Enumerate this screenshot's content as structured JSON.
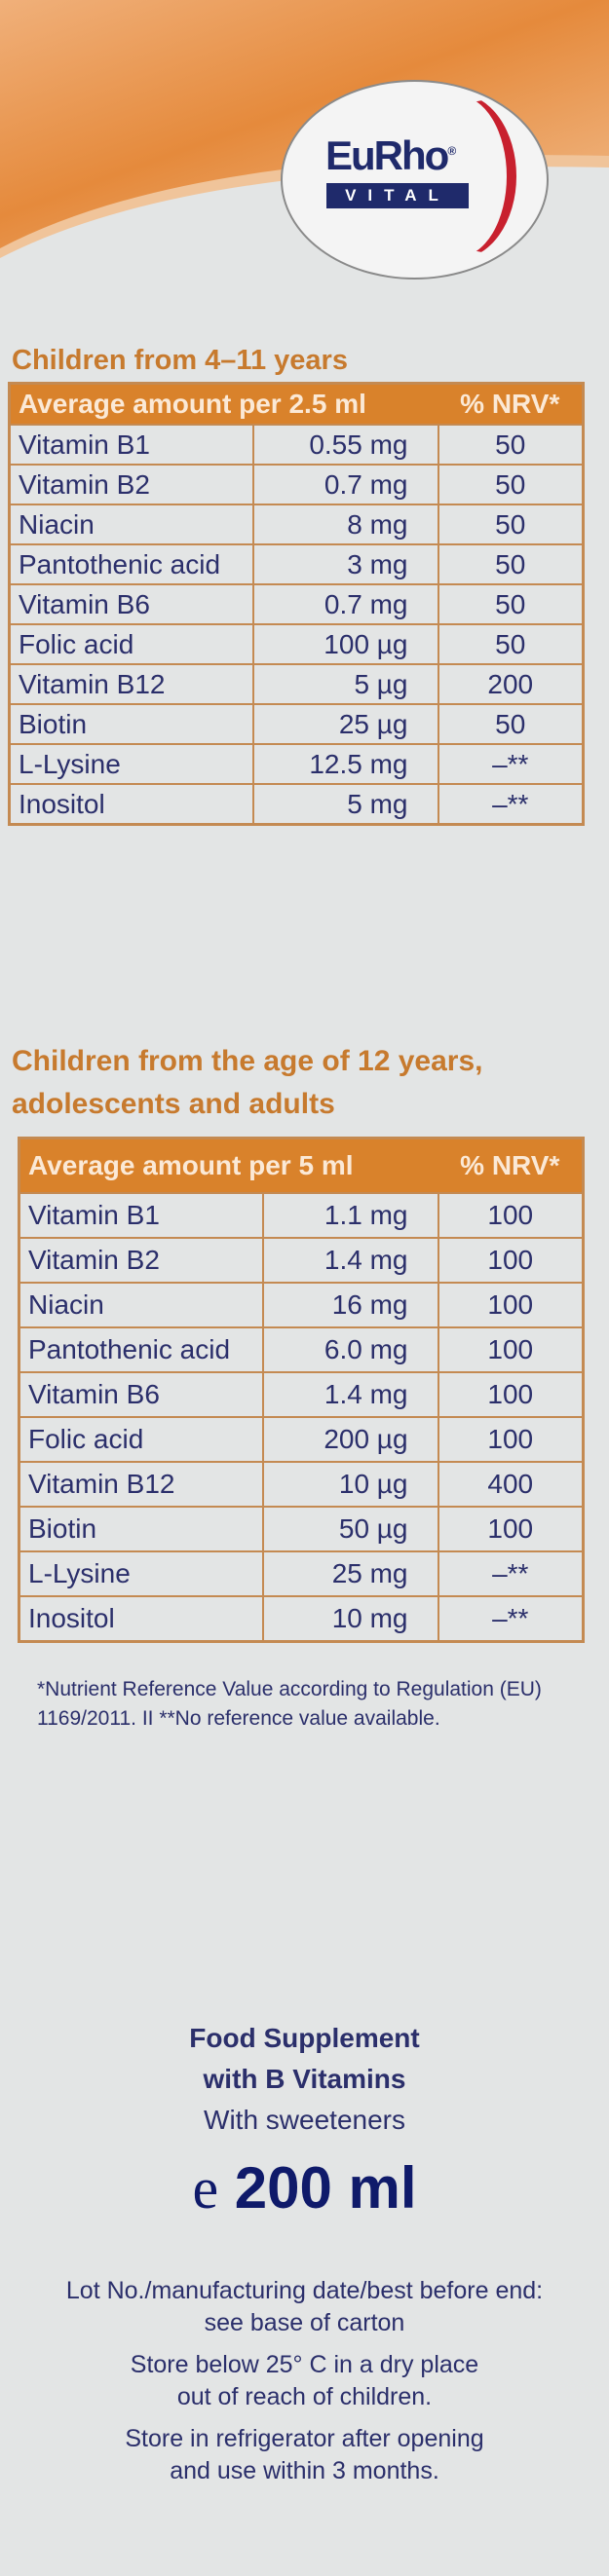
{
  "brand": {
    "logo_text": "EuRho",
    "logo_sub": "VITAL",
    "registered": "®"
  },
  "colors": {
    "orange": "#d9822b",
    "navy": "#2b2f6b",
    "red": "#c8202e"
  },
  "section1": {
    "heading": "Children from 4–11 years",
    "header": {
      "col1": "Average amount per 2.5 ml",
      "col2": "% NRV*"
    },
    "rows": [
      {
        "name": "Vitamin B1",
        "amount": "0.55 mg",
        "nrv": "50"
      },
      {
        "name": "Vitamin B2",
        "amount": "0.7 mg",
        "nrv": "50"
      },
      {
        "name": "Niacin",
        "amount": "8 mg",
        "nrv": "50"
      },
      {
        "name": "Pantothenic acid",
        "amount": "3 mg",
        "nrv": "50"
      },
      {
        "name": "Vitamin B6",
        "amount": "0.7 mg",
        "nrv": "50"
      },
      {
        "name": "Folic acid",
        "amount": "100 µg",
        "nrv": "50"
      },
      {
        "name": "Vitamin B12",
        "amount": "5 µg",
        "nrv": "200"
      },
      {
        "name": "Biotin",
        "amount": "25 µg",
        "nrv": "50"
      },
      {
        "name": "L-Lysine",
        "amount": "12.5 mg",
        "nrv": "–**"
      },
      {
        "name": "Inositol",
        "amount": "5 mg",
        "nrv": "–**"
      }
    ]
  },
  "section2": {
    "heading_line1": "Children from the age of 12 years,",
    "heading_line2": "adolescents and adults",
    "header": {
      "col1": "Average amount per 5 ml",
      "col2": "% NRV*"
    },
    "rows": [
      {
        "name": "Vitamin B1",
        "amount": "1.1 mg",
        "nrv": "100"
      },
      {
        "name": "Vitamin B2",
        "amount": "1.4 mg",
        "nrv": "100"
      },
      {
        "name": "Niacin",
        "amount": "16 mg",
        "nrv": "100"
      },
      {
        "name": "Pantothenic acid",
        "amount": "6.0 mg",
        "nrv": "100"
      },
      {
        "name": "Vitamin B6",
        "amount": "1.4 mg",
        "nrv": "100"
      },
      {
        "name": "Folic acid",
        "amount": "200 µg",
        "nrv": "100"
      },
      {
        "name": "Vitamin B12",
        "amount": "10 µg",
        "nrv": "400"
      },
      {
        "name": "Biotin",
        "amount": "50 µg",
        "nrv": "100"
      },
      {
        "name": "L-Lysine",
        "amount": "25 mg",
        "nrv": "–**"
      },
      {
        "name": "Inositol",
        "amount": "10 mg",
        "nrv": "–**"
      }
    ]
  },
  "footnote": {
    "line1": "*Nutrient Reference Value according to Regulation (EU)",
    "line2": "1169/2011. II **No  reference value available."
  },
  "product": {
    "line1": "Food Supplement",
    "line2": "with B Vitamins",
    "line3": "With sweeteners",
    "e_mark": "e",
    "volume": "200 ml"
  },
  "info": {
    "lot1": "Lot No./manufacturing date/best before end:",
    "lot2": "see base of carton",
    "store1": "Store below 25° C in a dry place",
    "store2": "out of reach of children.",
    "fridge1": "Store in refrigerator after opening",
    "fridge2": "and use within 3 months."
  }
}
